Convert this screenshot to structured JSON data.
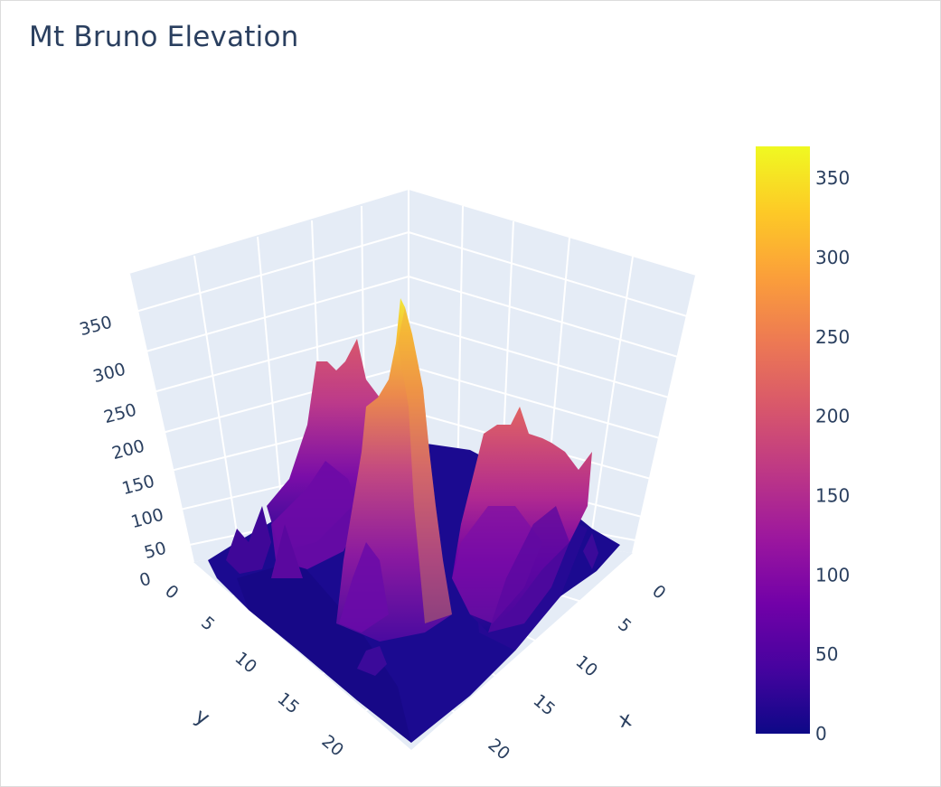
{
  "chart_data": {
    "type": "surface",
    "title": "Mt Bruno Elevation",
    "x_axis": {
      "title": "x",
      "ticks": [
        "0",
        "5",
        "10",
        "15",
        "20"
      ],
      "range": [
        0,
        24
      ]
    },
    "y_axis": {
      "title": "y",
      "ticks": [
        "0",
        "5",
        "10",
        "15",
        "20"
      ],
      "range": [
        0,
        24
      ]
    },
    "z_axis": {
      "title": "",
      "ticks": [
        "0",
        "50",
        "100",
        "150",
        "200",
        "250",
        "300",
        "350"
      ],
      "range": [
        0,
        370
      ]
    },
    "colorbar": {
      "ticks": [
        "0",
        "50",
        "100",
        "150",
        "200",
        "250",
        "300",
        "350"
      ],
      "range": [
        0,
        370
      ],
      "colorscale": [
        "#0d0887",
        "#46039f",
        "#7201a8",
        "#9c179e",
        "#bd3786",
        "#d8576b",
        "#ed7953",
        "#fb9f3a",
        "#fdca26",
        "#f0f921"
      ]
    },
    "peaks": [
      {
        "x": 10,
        "y": 5,
        "z": 360
      },
      {
        "x": 8,
        "y": 3,
        "z": 225
      },
      {
        "x": 5,
        "y": 13,
        "z": 220
      },
      {
        "x": 6,
        "y": 3,
        "z": 200
      },
      {
        "x": 14,
        "y": 10,
        "z": 160
      }
    ]
  }
}
